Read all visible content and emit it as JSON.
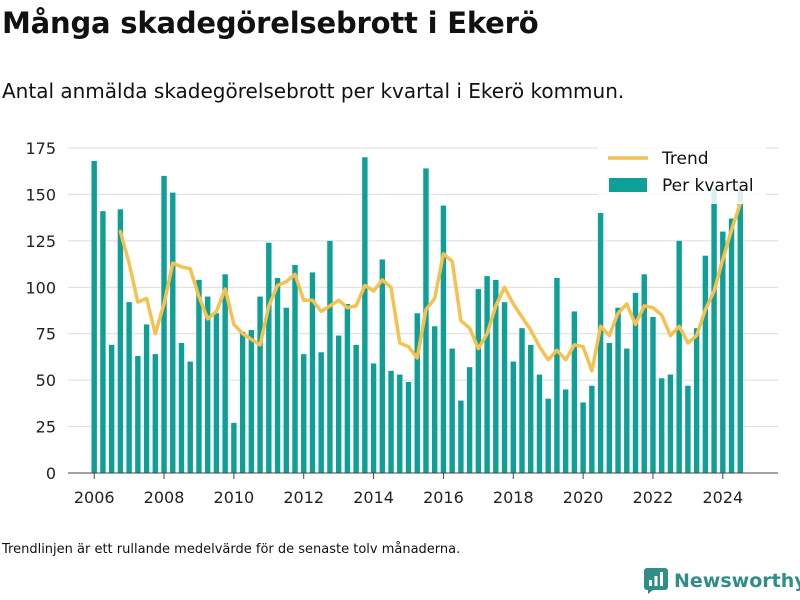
{
  "header": {
    "title": "Många skadegörelsebrott i Ekerö",
    "subtitle": "Antal anmälda skadegörelsebrott per kvartal i Ekerö kommun."
  },
  "footer": {
    "note": "Trendlinjen är ett rullande medelvärde för de senaste tolv månaderna.",
    "brand": "Newsworthy"
  },
  "colors": {
    "bar": "#0e9f96",
    "trend": "#f5c150",
    "grid": "#dcdcdc",
    "brand": "#2f8f88"
  },
  "chart_data": {
    "type": "bar",
    "title": "",
    "xlabel": "",
    "ylabel": "",
    "ylim": [
      0,
      175
    ],
    "yticks": [
      0,
      25,
      50,
      75,
      100,
      125,
      150,
      175
    ],
    "xlim": [
      2005.25,
      2025.58
    ],
    "xticks": [
      2006,
      2008,
      2010,
      2012,
      2014,
      2016,
      2018,
      2020,
      2022,
      2024
    ],
    "grid": true,
    "legend_position": "top-right",
    "legend": [
      "Trend",
      "Per kvartal"
    ],
    "series": [
      {
        "name": "Per kvartal",
        "type": "bar",
        "x": [
          "2006-Q1",
          "2006-Q2",
          "2006-Q3",
          "2006-Q4",
          "2007-Q1",
          "2007-Q2",
          "2007-Q3",
          "2007-Q4",
          "2008-Q1",
          "2008-Q2",
          "2008-Q3",
          "2008-Q4",
          "2009-Q1",
          "2009-Q2",
          "2009-Q3",
          "2009-Q4",
          "2010-Q1",
          "2010-Q2",
          "2010-Q3",
          "2010-Q4",
          "2011-Q1",
          "2011-Q2",
          "2011-Q3",
          "2011-Q4",
          "2012-Q1",
          "2012-Q2",
          "2012-Q3",
          "2012-Q4",
          "2013-Q1",
          "2013-Q2",
          "2013-Q3",
          "2013-Q4",
          "2014-Q1",
          "2014-Q2",
          "2014-Q3",
          "2014-Q4",
          "2015-Q1",
          "2015-Q2",
          "2015-Q3",
          "2015-Q4",
          "2016-Q1",
          "2016-Q2",
          "2016-Q3",
          "2016-Q4",
          "2017-Q1",
          "2017-Q2",
          "2017-Q3",
          "2017-Q4",
          "2018-Q1",
          "2018-Q2",
          "2018-Q3",
          "2018-Q4",
          "2019-Q1",
          "2019-Q2",
          "2019-Q3",
          "2019-Q4",
          "2020-Q1",
          "2020-Q2",
          "2020-Q3",
          "2020-Q4",
          "2021-Q1",
          "2021-Q2",
          "2021-Q3",
          "2021-Q4",
          "2022-Q1",
          "2022-Q2",
          "2022-Q3",
          "2022-Q4",
          "2023-Q1",
          "2023-Q2",
          "2023-Q3",
          "2023-Q4",
          "2024-Q1",
          "2024-Q2",
          "2024-Q3"
        ],
        "values": [
          168,
          141,
          69,
          142,
          92,
          63,
          80,
          64,
          160,
          151,
          70,
          60,
          104,
          95,
          86,
          107,
          27,
          76,
          77,
          95,
          124,
          105,
          89,
          112,
          64,
          108,
          65,
          125,
          74,
          91,
          69,
          170,
          59,
          115,
          55,
          53,
          49,
          86,
          164,
          79,
          144,
          67,
          39,
          57,
          99,
          106,
          104,
          92,
          60,
          78,
          69,
          53,
          40,
          105,
          45,
          87,
          38,
          47,
          140,
          70,
          89,
          67,
          97,
          107,
          84,
          51,
          53,
          125,
          47,
          78,
          117,
          153,
          130,
          137,
          153
        ]
      },
      {
        "name": "Trend",
        "type": "line",
        "x": [
          "2006-Q4",
          "2007-Q1",
          "2007-Q2",
          "2007-Q3",
          "2007-Q4",
          "2008-Q1",
          "2008-Q2",
          "2008-Q3",
          "2008-Q4",
          "2009-Q1",
          "2009-Q2",
          "2009-Q3",
          "2009-Q4",
          "2010-Q1",
          "2010-Q2",
          "2010-Q3",
          "2010-Q4",
          "2011-Q1",
          "2011-Q2",
          "2011-Q3",
          "2011-Q4",
          "2012-Q1",
          "2012-Q2",
          "2012-Q3",
          "2012-Q4",
          "2013-Q1",
          "2013-Q2",
          "2013-Q3",
          "2013-Q4",
          "2014-Q1",
          "2014-Q2",
          "2014-Q3",
          "2014-Q4",
          "2015-Q1",
          "2015-Q2",
          "2015-Q3",
          "2015-Q4",
          "2016-Q1",
          "2016-Q2",
          "2016-Q3",
          "2016-Q4",
          "2017-Q1",
          "2017-Q2",
          "2017-Q3",
          "2017-Q4",
          "2018-Q1",
          "2018-Q2",
          "2018-Q3",
          "2018-Q4",
          "2019-Q1",
          "2019-Q2",
          "2019-Q3",
          "2019-Q4",
          "2020-Q1",
          "2020-Q2",
          "2020-Q3",
          "2020-Q4",
          "2021-Q1",
          "2021-Q2",
          "2021-Q3",
          "2021-Q4",
          "2022-Q1",
          "2022-Q2",
          "2022-Q3",
          "2022-Q4",
          "2023-Q1",
          "2023-Q2",
          "2023-Q3",
          "2023-Q4",
          "2024-Q1",
          "2024-Q2",
          "2024-Q3"
        ],
        "values": [
          130,
          113,
          92,
          94,
          75,
          91,
          113,
          111,
          110,
          95,
          83,
          87,
          99,
          80,
          75,
          72,
          69,
          90,
          101,
          103,
          107,
          93,
          93,
          87,
          90,
          93,
          89,
          90,
          101,
          98,
          104,
          100,
          70,
          68,
          62,
          88,
          94,
          118,
          114,
          82,
          78,
          67,
          75,
          90,
          100,
          91,
          84,
          77,
          68,
          61,
          66,
          61,
          69,
          68,
          55,
          79,
          74,
          86,
          91,
          80,
          90,
          89,
          85,
          74,
          79,
          70,
          74,
          88,
          98,
          115,
          131,
          145
        ]
      }
    ]
  }
}
